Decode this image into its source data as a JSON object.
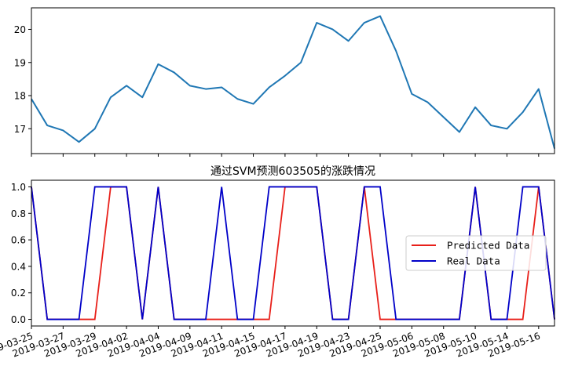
{
  "chart_data": [
    {
      "type": "line",
      "title": "",
      "xlabel": "",
      "ylabel": "",
      "ylim": [
        16.25,
        20.65
      ],
      "yticks": [
        17,
        18,
        19,
        20
      ],
      "grid": false,
      "series": [
        {
          "color": "#1f77b4",
          "values": [
            17.9,
            17.1,
            16.95,
            16.6,
            17.0,
            17.95,
            18.3,
            17.95,
            18.95,
            18.7,
            18.3,
            18.2,
            18.25,
            17.9,
            17.75,
            18.25,
            18.6,
            19.0,
            20.2,
            20.0,
            19.65,
            20.2,
            20.4,
            19.35,
            18.05,
            17.8,
            17.35,
            16.9,
            17.65,
            17.1,
            17.0,
            17.5,
            18.2,
            16.4
          ]
        }
      ]
    },
    {
      "type": "line",
      "title": "通过SVM预测603505的涨跌情况",
      "xlabel": "",
      "ylabel": "",
      "ylim": [
        -0.05,
        1.05
      ],
      "yticks": [
        0.0,
        0.2,
        0.4,
        0.6,
        0.8,
        1.0
      ],
      "ytick_labels": [
        "0.0",
        "0.2",
        "0.4",
        "0.6",
        "0.8",
        "1.0"
      ],
      "grid": false,
      "legend_position": "center-right",
      "x_tick_labels": [
        "2019-03-25",
        "2019-03-27",
        "2019-03-29",
        "2019-04-02",
        "2019-04-04",
        "2019-04-09",
        "2019-04-11",
        "2019-04-15",
        "2019-04-17",
        "2019-04-19",
        "2019-04-23",
        "2019-04-25",
        "2019-05-06",
        "2019-05-08",
        "2019-05-10",
        "2019-05-14",
        "2019-05-16"
      ],
      "series": [
        {
          "name": "Predicted Data",
          "color": "#e8201a",
          "values": [
            1,
            0,
            0,
            0,
            0,
            1,
            1,
            0,
            1,
            0,
            0,
            0,
            0,
            0,
            0,
            0,
            1,
            1,
            1,
            0,
            0,
            1,
            0,
            0,
            0,
            0,
            0,
            0,
            1,
            0,
            0,
            0,
            1,
            0
          ]
        },
        {
          "name": "Real Data",
          "color": "#0000c8",
          "values": [
            1,
            0,
            0,
            0,
            1,
            1,
            1,
            0,
            1,
            0,
            0,
            0,
            1,
            0,
            0,
            1,
            1,
            1,
            1,
            0,
            0,
            1,
            1,
            0,
            0,
            0,
            0,
            0,
            1,
            0,
            0,
            1,
            1,
            0
          ]
        }
      ]
    }
  ]
}
